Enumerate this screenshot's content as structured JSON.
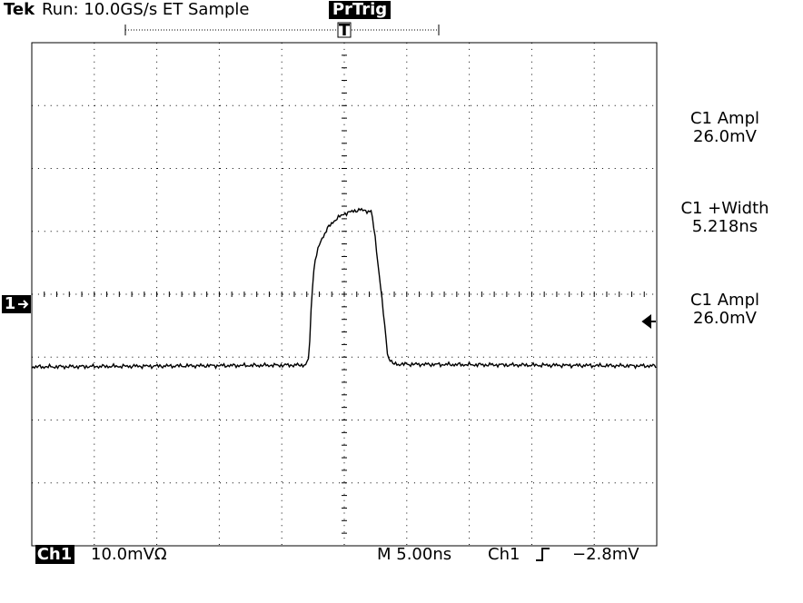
{
  "header": {
    "brand": "Tek",
    "status": "Run: 10.0GS/s ET Sample",
    "trigger_mode": "PrTrig",
    "trigger_marker": "T"
  },
  "channel_marker": "1",
  "measurements": [
    {
      "label": "C1 Ampl",
      "value": "26.0mV"
    },
    {
      "label": "C1 +Width",
      "value": "5.218ns"
    },
    {
      "label": "C1 Ampl",
      "value": "26.0mV"
    }
  ],
  "footer": {
    "channel": "Ch1",
    "scale": "10.0mVΩ",
    "timebase": "M 5.00ns",
    "trigger_source": "Ch1",
    "trigger_level": "−2.8mV"
  }
}
